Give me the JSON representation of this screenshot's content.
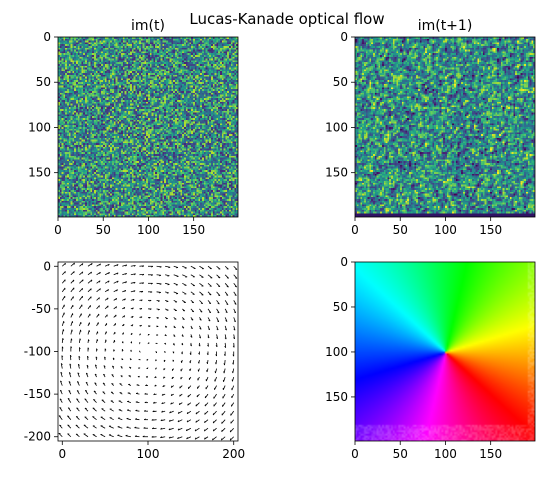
{
  "figure": {
    "suptitle": "Lucas-Kanade optical flow"
  },
  "chart_data": [
    {
      "id": "im_t",
      "type": "heatmap",
      "title": "im(t)",
      "image_shape": [
        200,
        200
      ],
      "colormap": "viridis",
      "content": "random noise",
      "xlim": [
        0,
        199
      ],
      "ylim": [
        199,
        0
      ],
      "xticks": [
        0,
        50,
        100,
        150
      ],
      "yticks": [
        0,
        50,
        100,
        150
      ]
    },
    {
      "id": "im_t1",
      "type": "heatmap",
      "title": "im(t+1)",
      "image_shape": [
        200,
        200
      ],
      "colormap": "viridis",
      "content": "rotated random noise",
      "xlim": [
        0,
        199
      ],
      "ylim": [
        199,
        0
      ],
      "xticks": [
        0,
        50,
        100,
        150
      ],
      "yticks": [
        0,
        50,
        100,
        150
      ]
    },
    {
      "id": "flow_quiver",
      "type": "scatter",
      "subtype": "quiver",
      "title": "",
      "grid_step": 10,
      "center": [
        100,
        -100
      ],
      "flow": "clockwise rotation about center",
      "xlim": [
        -5,
        205
      ],
      "ylim": [
        -205,
        5
      ],
      "xticks": [
        0,
        100,
        200
      ],
      "yticks": [
        0,
        -50,
        -100,
        -150,
        -200
      ],
      "arrow_color": "#000000"
    },
    {
      "id": "flow_hsv",
      "type": "heatmap",
      "title": "",
      "image_shape": [
        200,
        200
      ],
      "colormap": "hsv flow direction",
      "center": [
        100,
        100
      ],
      "xlim": [
        0,
        199
      ],
      "ylim": [
        199,
        0
      ],
      "xticks": [
        0,
        50,
        100,
        150
      ],
      "yticks": [
        0,
        50,
        100,
        150
      ]
    }
  ]
}
